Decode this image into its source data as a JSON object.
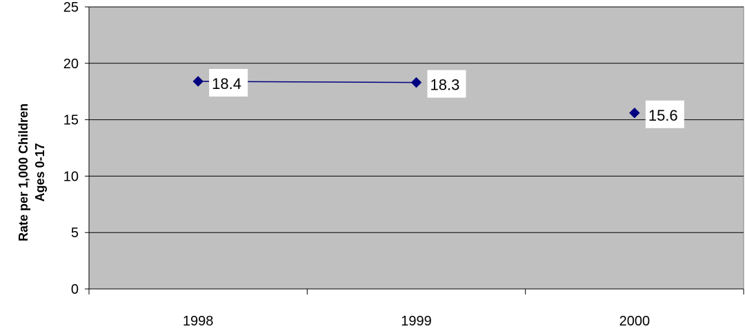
{
  "chart_data": {
    "type": "line",
    "categories": [
      "1998",
      "1999",
      "2000"
    ],
    "series": [
      {
        "values": [
          18.4,
          18.3,
          15.6
        ],
        "data_labels": [
          "18.4",
          "18.3",
          "15.6"
        ],
        "connected": [
          true,
          true,
          false
        ],
        "color": "#000080"
      }
    ],
    "ylabel_lines": [
      "Rate per 1,000 Children",
      "Ages 0-17"
    ],
    "ylim": [
      0,
      25
    ],
    "yticks": [
      0,
      5,
      10,
      15,
      20,
      25
    ],
    "ytick_labels": [
      "0",
      "5",
      "10",
      "15",
      "20",
      "25"
    ],
    "grid": true,
    "legend": "none",
    "plot_background": "#c0c0c0",
    "gridline_color": "#000000"
  }
}
